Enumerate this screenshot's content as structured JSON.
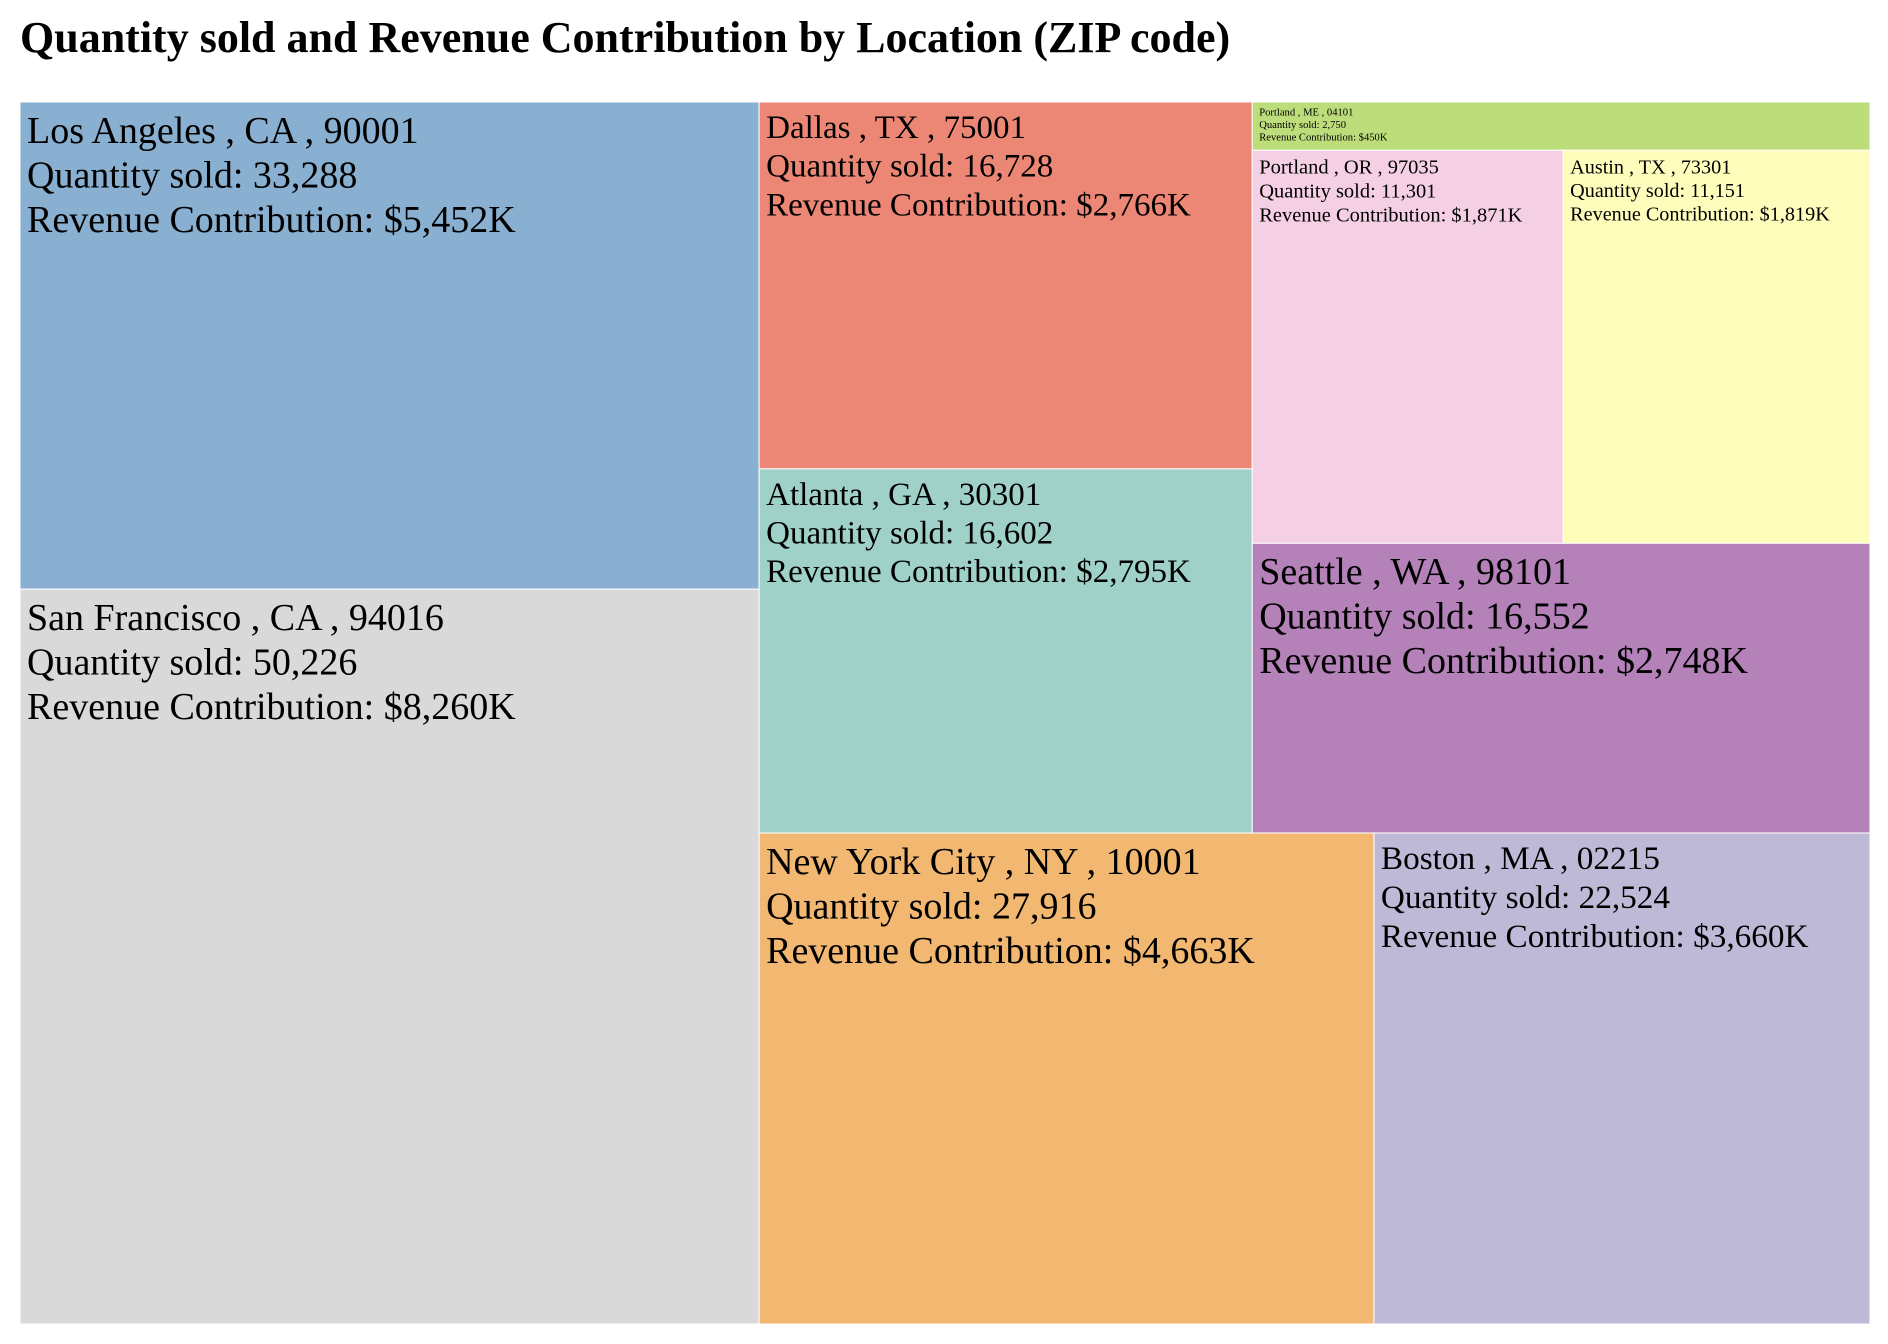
{
  "chart_data": {
    "type": "treemap",
    "title": "Quantity sold and Revenue Contribution by Location (ZIP code)",
    "value_field": "Quantity sold",
    "line_prefixes": {
      "quantity": "Quantity sold: ",
      "revenue": "Revenue Contribution: "
    },
    "items": [
      {
        "location": "San Francisco , CA , 94016",
        "quantity": 50226,
        "quantity_label": "50,226",
        "revenue_label": "$8,260K",
        "color": "#d9d9d9"
      },
      {
        "location": "Los Angeles , CA , 90001",
        "quantity": 33288,
        "quantity_label": "33,288",
        "revenue_label": "$5,452K",
        "color": "#8ab0d1"
      },
      {
        "location": "New York City , NY , 10001",
        "quantity": 27916,
        "quantity_label": "27,916",
        "revenue_label": "$4,663K",
        "color": "#f2b872"
      },
      {
        "location": "Boston , MA , 02215",
        "quantity": 22524,
        "quantity_label": "22,524",
        "revenue_label": "$3,660K",
        "color": "#bdb9d7"
      },
      {
        "location": "Dallas , TX , 75001",
        "quantity": 16728,
        "quantity_label": "16,728",
        "revenue_label": "$2,766K",
        "color": "#ec8776"
      },
      {
        "location": "Atlanta , GA , 30301",
        "quantity": 16602,
        "quantity_label": "16,602",
        "revenue_label": "$2,795K",
        "color": "#9fd1c8"
      },
      {
        "location": "Seattle , WA , 98101",
        "quantity": 16552,
        "quantity_label": "16,552",
        "revenue_label": "$2,748K",
        "color": "#b482b9"
      },
      {
        "location": "Portland , OR , 97035",
        "quantity": 11301,
        "quantity_label": "11,301",
        "revenue_label": "$1,871K",
        "color": "#f5cfe4"
      },
      {
        "location": "Austin , TX , 73301",
        "quantity": 11151,
        "quantity_label": "11,151",
        "revenue_label": "$1,819K",
        "color": "#fefdbc"
      },
      {
        "location": "Portland , ME , 04101",
        "quantity": 2750,
        "quantity_label": "2,750",
        "revenue_label": "$450K",
        "color": "#bddd7a"
      }
    ]
  }
}
